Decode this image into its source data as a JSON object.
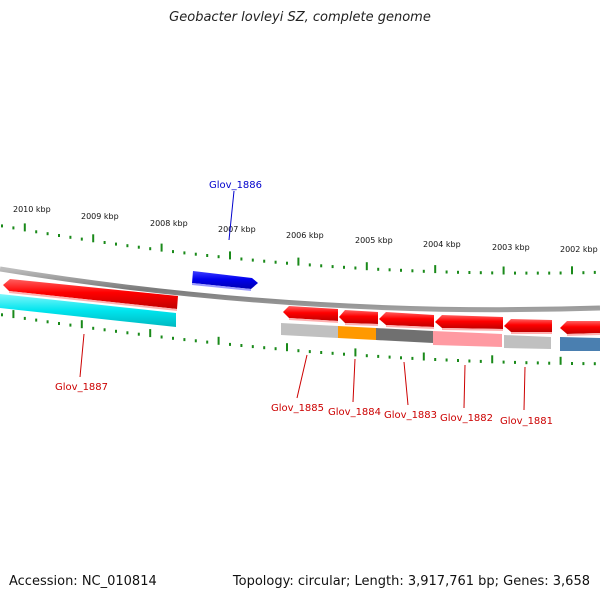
{
  "title": "Geobacter lovleyi SZ, complete genome",
  "footer": {
    "accession": "Accession: NC_010814",
    "topology": "Topology: circular; Length: 3,917,761 bp; Genes: 3,658"
  },
  "ruler_labels": [
    "2010 kbp",
    "2009 kbp",
    "2008 kbp",
    "2007 kbp",
    "2006 kbp",
    "2005 kbp",
    "2004 kbp",
    "2003 kbp",
    "2002 kbp"
  ],
  "genes": [
    {
      "id": "Glov_1886",
      "strand": "+",
      "color": "#0000ee"
    },
    {
      "id": "Glov_1887",
      "strand": "-",
      "color": "#ff0000"
    },
    {
      "id": "Glov_1885",
      "strand": "-",
      "color": "#ff0000"
    },
    {
      "id": "Glov_1884",
      "strand": "-",
      "color": "#ff0000"
    },
    {
      "id": "Glov_1883",
      "strand": "-",
      "color": "#ff0000"
    },
    {
      "id": "Glov_1882",
      "strand": "-",
      "color": "#ff0000"
    },
    {
      "id": "Glov_1881",
      "strand": "-",
      "color": "#ff0000"
    }
  ],
  "colors": {
    "forward_gene": "#0000ee",
    "reverse_gene": "#ff0000",
    "backbone": "#888888",
    "ruler_tick": "#1a8a1a",
    "gene_label_plus": "#0000cc",
    "gene_label_minus": "#cc0000",
    "cog_cyan": "#00e5ee",
    "cog_orange": "#ff9900",
    "cog_darkgray": "#707070",
    "cog_pink": "#ff9aa2",
    "cog_lightgray": "#c0c0c0",
    "cog_steelblue": "#4a7fb0"
  }
}
